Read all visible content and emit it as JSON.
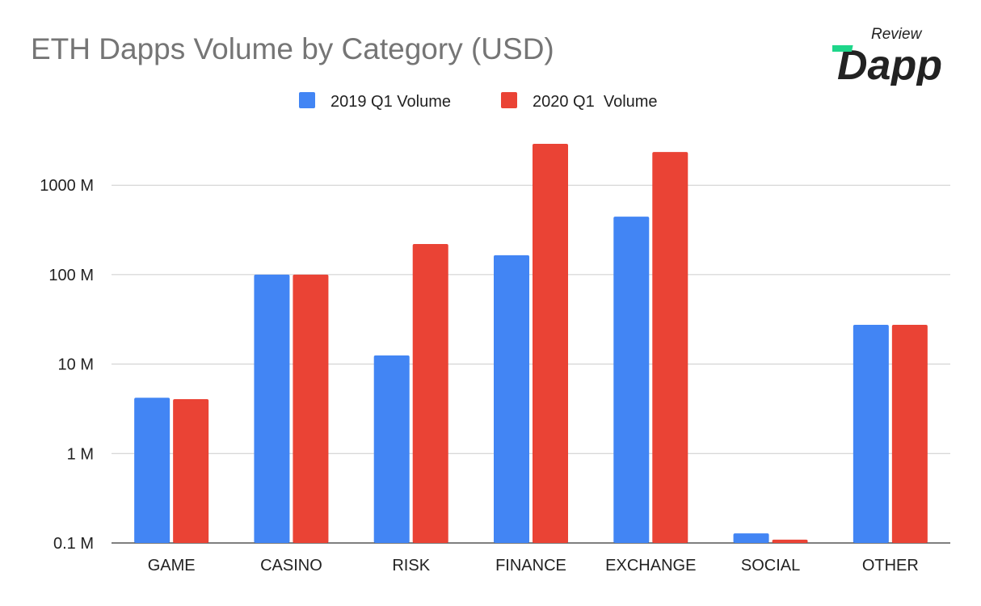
{
  "logo": {
    "text_top": "Review",
    "text_main": "Dapp",
    "accent": "#1ed68a"
  },
  "chart_data": {
    "type": "bar",
    "title": "ETH Dapps Volume by Category (USD)",
    "xlabel": "",
    "ylabel": "",
    "yscale": "log",
    "ylim": [
      0.1,
      3000
    ],
    "yticks": [
      0.1,
      1,
      10,
      100,
      1000
    ],
    "ytick_labels": [
      "0.1 M",
      "1 M",
      "10 M",
      "100 M",
      "1000 M"
    ],
    "unit": "M",
    "grid": true,
    "legend_position": "top",
    "categories": [
      "GAME",
      "CASINO",
      "RISK",
      "FINANCE",
      "EXCHANGE",
      "SOCIAL",
      "OTHER"
    ],
    "series": [
      {
        "name": "2019 Q1 Volume",
        "color": "#4285f4",
        "values": [
          4.2,
          100,
          12.5,
          165,
          445,
          0.128,
          27.5
        ]
      },
      {
        "name": "2020 Q1  Volume",
        "color": "#ea4335",
        "values": [
          4.05,
          100,
          220,
          2900,
          2350,
          0.109,
          27.5
        ]
      }
    ]
  }
}
